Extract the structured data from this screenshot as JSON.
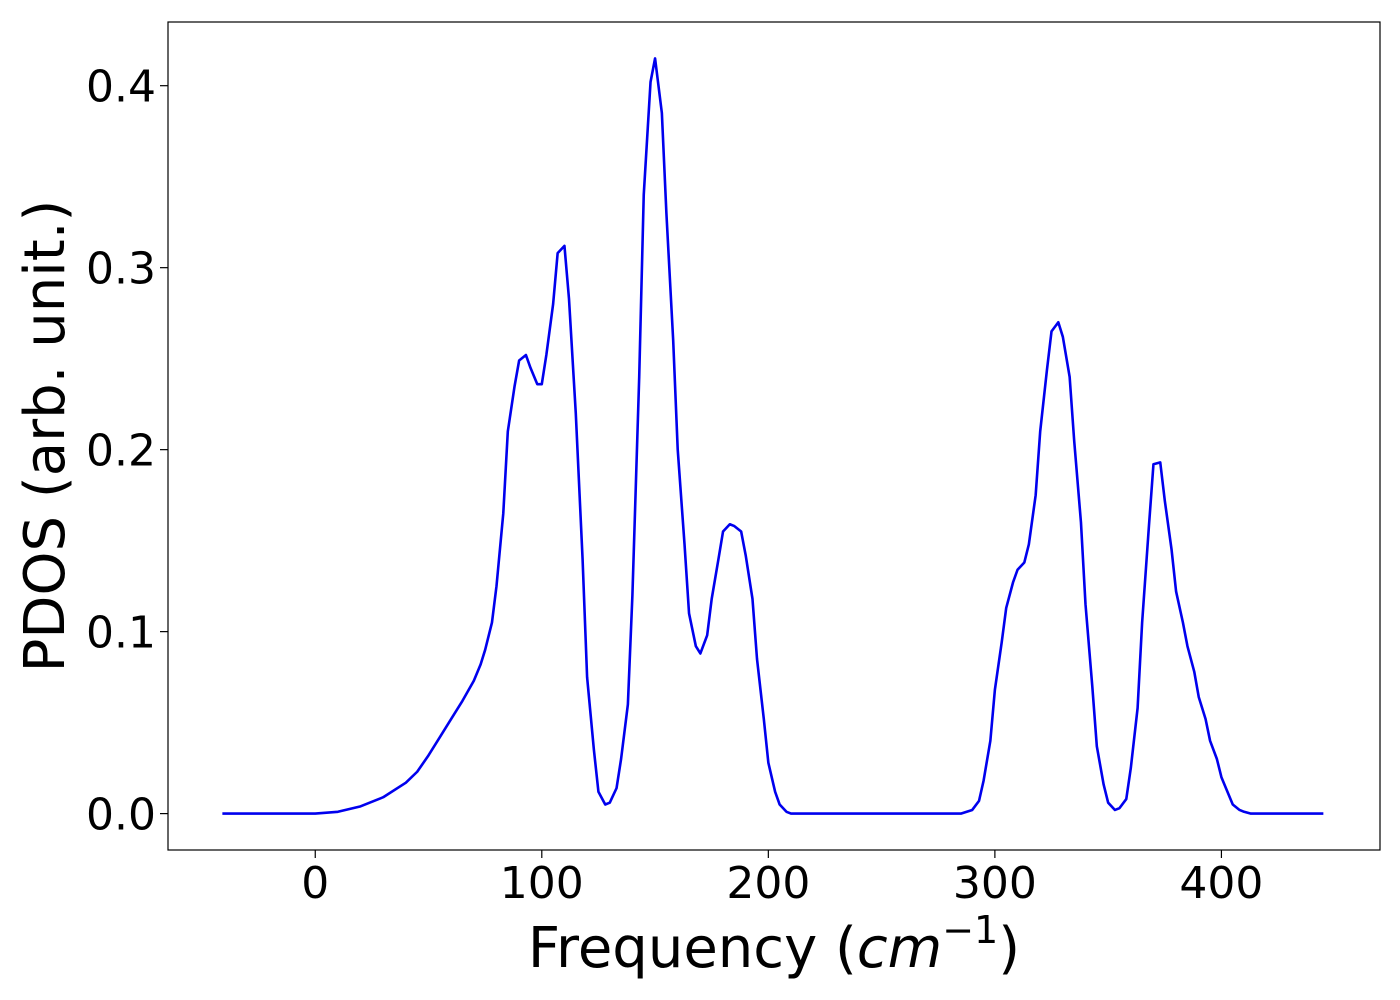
{
  "chart_data": {
    "type": "line",
    "title": "",
    "xlabel_main": "Frequency (",
    "xlabel_italic": "cm",
    "xlabel_sup": "−1",
    "xlabel_close": ")",
    "ylabel": "PDOS (arb. unit.)",
    "xlim": [
      -65,
      470
    ],
    "ylim": [
      -0.02,
      0.435
    ],
    "x_ticks": [
      0,
      100,
      200,
      300,
      400
    ],
    "x_tick_labels": [
      "0",
      "100",
      "200",
      "300",
      "400"
    ],
    "y_ticks": [
      0.0,
      0.1,
      0.2,
      0.3,
      0.4
    ],
    "y_tick_labels": [
      "0.0",
      "0.1",
      "0.2",
      "0.3",
      "0.4"
    ],
    "grid": false,
    "line_color": "#0000ee",
    "series": [
      {
        "x": [
          -41,
          0,
          10,
          20,
          30,
          40,
          45,
          50,
          55,
          60,
          65,
          70,
          73,
          75,
          78,
          80,
          83,
          85,
          88,
          90,
          93,
          95,
          98,
          100,
          102,
          105,
          107,
          110,
          112,
          115,
          118,
          120,
          123,
          125,
          128,
          130,
          133,
          135,
          138,
          140,
          143,
          145,
          148,
          150,
          153,
          155,
          158,
          160,
          163,
          165,
          168,
          170,
          173,
          175,
          178,
          180,
          183,
          185,
          188,
          190,
          193,
          195,
          198,
          200,
          203,
          205,
          208,
          210,
          215,
          220,
          250,
          285,
          290,
          293,
          295,
          298,
          300,
          303,
          305,
          308,
          310,
          313,
          315,
          318,
          320,
          323,
          325,
          328,
          330,
          333,
          335,
          338,
          340,
          343,
          345,
          348,
          350,
          353,
          355,
          358,
          360,
          363,
          365,
          368,
          370,
          373,
          375,
          378,
          380,
          383,
          385,
          388,
          390,
          393,
          395,
          398,
          400,
          403,
          405,
          408,
          410,
          413,
          415,
          420,
          445
        ],
        "y": [
          0,
          0,
          0.001,
          0.004,
          0.009,
          0.017,
          0.023,
          0.032,
          0.042,
          0.052,
          0.062,
          0.073,
          0.082,
          0.09,
          0.105,
          0.125,
          0.165,
          0.21,
          0.235,
          0.249,
          0.252,
          0.245,
          0.236,
          0.236,
          0.252,
          0.28,
          0.308,
          0.312,
          0.283,
          0.22,
          0.14,
          0.075,
          0.035,
          0.012,
          0.005,
          0.006,
          0.014,
          0.03,
          0.06,
          0.12,
          0.24,
          0.34,
          0.402,
          0.415,
          0.385,
          0.33,
          0.26,
          0.2,
          0.148,
          0.11,
          0.092,
          0.088,
          0.098,
          0.118,
          0.14,
          0.155,
          0.159,
          0.158,
          0.155,
          0.142,
          0.118,
          0.085,
          0.052,
          0.028,
          0.012,
          0.005,
          0.001,
          0,
          0,
          0,
          0,
          0,
          0.002,
          0.007,
          0.018,
          0.04,
          0.068,
          0.094,
          0.113,
          0.127,
          0.134,
          0.138,
          0.148,
          0.175,
          0.21,
          0.244,
          0.265,
          0.27,
          0.262,
          0.24,
          0.205,
          0.16,
          0.115,
          0.07,
          0.037,
          0.016,
          0.006,
          0.002,
          0.003,
          0.008,
          0.025,
          0.058,
          0.105,
          0.158,
          0.192,
          0.193,
          0.172,
          0.145,
          0.122,
          0.105,
          0.092,
          0.078,
          0.064,
          0.052,
          0.04,
          0.03,
          0.02,
          0.011,
          0.005,
          0.002,
          0.001,
          0,
          0,
          0,
          0
        ]
      }
    ]
  }
}
